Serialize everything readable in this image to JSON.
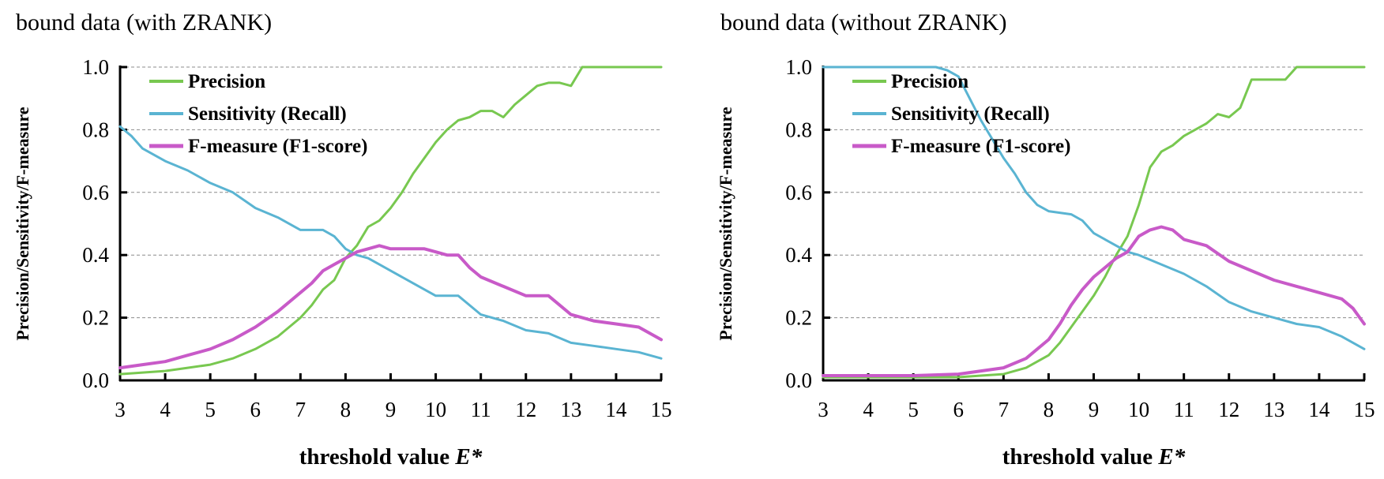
{
  "colors": {
    "precision": "#78c850",
    "recall": "#5ab4d2",
    "fmeasure": "#c85ac8"
  },
  "chart_data": [
    {
      "type": "line",
      "title": "bound data (with ZRANK)",
      "xlabel_prefix": "threshold value ",
      "xlabel_var": "E*",
      "ylabel": "Precision/Sensitivity/F-measure",
      "xlim": [
        3,
        15
      ],
      "ylim": [
        0,
        1
      ],
      "xticks": [
        "3",
        "4",
        "5",
        "6",
        "7",
        "8",
        "9",
        "10",
        "11",
        "12",
        "13",
        "14",
        "15"
      ],
      "yticks": [
        "0.0",
        "0.2",
        "0.4",
        "0.6",
        "0.8",
        "1.0"
      ],
      "grid": true,
      "legend": "top-left",
      "series": [
        {
          "name": "Precision",
          "color": "#78c850",
          "x": [
            3,
            3.5,
            4,
            4.5,
            5,
            5.5,
            6,
            6.5,
            7,
            7.25,
            7.5,
            7.75,
            8,
            8.25,
            8.5,
            8.75,
            9,
            9.25,
            9.5,
            9.75,
            10,
            10.25,
            10.5,
            10.75,
            11,
            11.25,
            11.5,
            11.75,
            12,
            12.25,
            12.5,
            12.75,
            13,
            13.25,
            13.5,
            14,
            14.5,
            15
          ],
          "y": [
            0.02,
            0.025,
            0.03,
            0.04,
            0.05,
            0.07,
            0.1,
            0.14,
            0.2,
            0.24,
            0.29,
            0.32,
            0.39,
            0.43,
            0.49,
            0.51,
            0.55,
            0.6,
            0.66,
            0.71,
            0.76,
            0.8,
            0.83,
            0.84,
            0.86,
            0.86,
            0.84,
            0.88,
            0.91,
            0.94,
            0.95,
            0.95,
            0.94,
            1.0,
            1.0,
            1.0,
            1.0,
            1.0
          ]
        },
        {
          "name": "Sensitivity (Recall)",
          "color": "#5ab4d2",
          "x": [
            3,
            3.25,
            3.5,
            4,
            4.5,
            5,
            5.5,
            6,
            6.5,
            7,
            7.5,
            7.75,
            8,
            8.25,
            8.5,
            8.75,
            9,
            9.5,
            10,
            10.5,
            11,
            11.5,
            12,
            12.5,
            13,
            13.5,
            14,
            14.5,
            15
          ],
          "y": [
            0.81,
            0.78,
            0.74,
            0.7,
            0.67,
            0.63,
            0.6,
            0.55,
            0.52,
            0.48,
            0.48,
            0.46,
            0.42,
            0.4,
            0.39,
            0.37,
            0.35,
            0.31,
            0.27,
            0.27,
            0.21,
            0.19,
            0.16,
            0.15,
            0.12,
            0.11,
            0.1,
            0.09,
            0.07
          ]
        },
        {
          "name": "F-measure (F1-score)",
          "color": "#c85ac8",
          "x": [
            3,
            3.5,
            4,
            4.5,
            5,
            5.5,
            6,
            6.5,
            7,
            7.25,
            7.5,
            7.75,
            8,
            8.25,
            8.5,
            8.75,
            9,
            9.25,
            9.5,
            9.75,
            10,
            10.25,
            10.5,
            10.75,
            11,
            11.5,
            12,
            12.5,
            13,
            13.5,
            14,
            14.5,
            15
          ],
          "y": [
            0.04,
            0.05,
            0.06,
            0.08,
            0.1,
            0.13,
            0.17,
            0.22,
            0.28,
            0.31,
            0.35,
            0.37,
            0.39,
            0.41,
            0.42,
            0.43,
            0.42,
            0.42,
            0.42,
            0.42,
            0.41,
            0.4,
            0.4,
            0.36,
            0.33,
            0.3,
            0.27,
            0.27,
            0.21,
            0.19,
            0.18,
            0.17,
            0.13
          ]
        }
      ]
    },
    {
      "type": "line",
      "title": "bound data (without ZRANK)",
      "xlabel_prefix": "threshold value ",
      "xlabel_var": "E*",
      "ylabel": "Precision/Sensitivity/F-measure",
      "xlim": [
        3,
        15
      ],
      "ylim": [
        0,
        1
      ],
      "xticks": [
        "3",
        "4",
        "5",
        "6",
        "7",
        "8",
        "9",
        "10",
        "11",
        "12",
        "13",
        "14",
        "15"
      ],
      "yticks": [
        "0.0",
        "0.2",
        "0.4",
        "0.6",
        "0.8",
        "1.0"
      ],
      "grid": true,
      "legend": "top-left",
      "series": [
        {
          "name": "Precision",
          "color": "#78c850",
          "x": [
            3,
            4,
            5,
            6,
            6.5,
            7,
            7.5,
            8,
            8.25,
            8.5,
            8.75,
            9,
            9.25,
            9.5,
            9.75,
            10,
            10.25,
            10.5,
            10.75,
            11,
            11.25,
            11.5,
            11.75,
            12,
            12.25,
            12.5,
            12.75,
            13,
            13.25,
            13.5,
            14,
            14.5,
            15
          ],
          "y": [
            0.01,
            0.01,
            0.01,
            0.01,
            0.015,
            0.02,
            0.04,
            0.08,
            0.12,
            0.17,
            0.22,
            0.27,
            0.33,
            0.4,
            0.46,
            0.56,
            0.68,
            0.73,
            0.75,
            0.78,
            0.8,
            0.82,
            0.85,
            0.84,
            0.87,
            0.96,
            0.96,
            0.96,
            0.96,
            1.0,
            1.0,
            1.0,
            1.0
          ]
        },
        {
          "name": "Sensitivity (Recall)",
          "color": "#5ab4d2",
          "x": [
            3,
            4,
            5,
            5.5,
            5.75,
            6,
            6.25,
            6.5,
            6.75,
            7,
            7.25,
            7.5,
            7.75,
            8,
            8.5,
            8.75,
            9,
            9.25,
            9.5,
            9.75,
            10,
            10.5,
            11,
            11.5,
            12,
            12.5,
            13,
            13.5,
            14,
            14.5,
            15
          ],
          "y": [
            1.0,
            1.0,
            1.0,
            1.0,
            0.99,
            0.97,
            0.9,
            0.83,
            0.77,
            0.71,
            0.66,
            0.6,
            0.56,
            0.54,
            0.53,
            0.51,
            0.47,
            0.45,
            0.43,
            0.41,
            0.4,
            0.37,
            0.34,
            0.3,
            0.25,
            0.22,
            0.2,
            0.18,
            0.17,
            0.14,
            0.1
          ]
        },
        {
          "name": "F-measure (F1-score)",
          "color": "#c85ac8",
          "x": [
            3,
            4,
            5,
            6,
            6.5,
            7,
            7.5,
            8,
            8.25,
            8.5,
            8.75,
            9,
            9.25,
            9.5,
            9.75,
            10,
            10.25,
            10.5,
            10.75,
            11,
            11.5,
            12,
            12.5,
            13,
            13.5,
            14,
            14.5,
            14.75,
            15
          ],
          "y": [
            0.015,
            0.015,
            0.015,
            0.02,
            0.03,
            0.04,
            0.07,
            0.13,
            0.18,
            0.24,
            0.29,
            0.33,
            0.36,
            0.39,
            0.41,
            0.46,
            0.48,
            0.49,
            0.48,
            0.45,
            0.43,
            0.38,
            0.35,
            0.32,
            0.3,
            0.28,
            0.26,
            0.23,
            0.18
          ]
        }
      ]
    }
  ]
}
